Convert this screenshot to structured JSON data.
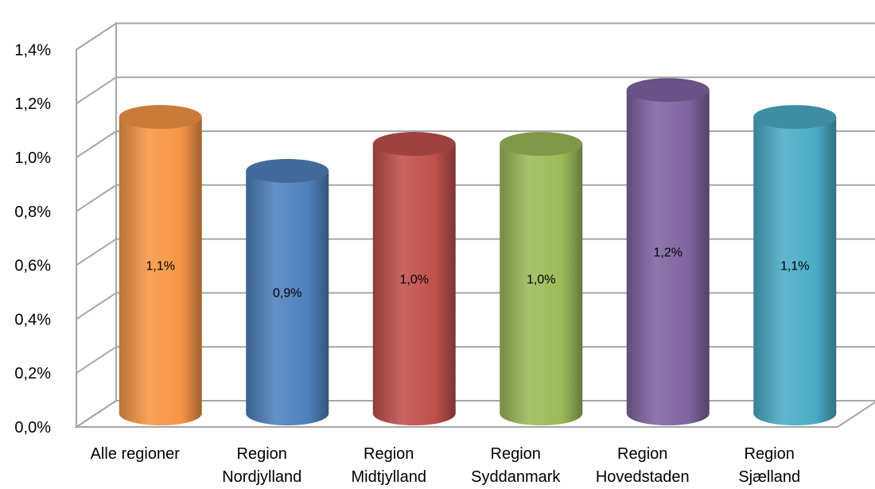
{
  "chart_data": {
    "type": "bar",
    "style": "3d-cylinder",
    "categories": [
      [
        "Alle regioner"
      ],
      [
        "Region",
        "Nordjylland"
      ],
      [
        "Region",
        "Midtjylland"
      ],
      [
        "Region",
        "Syddanmark"
      ],
      [
        "Region",
        "Hovedstaden"
      ],
      [
        "Region",
        "Sjælland"
      ]
    ],
    "values": [
      1.1,
      0.9,
      1.0,
      1.0,
      1.2,
      1.1
    ],
    "data_labels": [
      "1,1%",
      "0,9%",
      "1,0%",
      "1,0%",
      "1,2%",
      "1,1%"
    ],
    "colors": [
      "#F79646",
      "#4F81BD",
      "#C0504D",
      "#9BBB59",
      "#8064A2",
      "#4BACC6"
    ],
    "ylim": [
      0,
      1.5
    ],
    "yticks": [
      0.0,
      0.2,
      0.4,
      0.6,
      0.8,
      1.0,
      1.2,
      1.4
    ],
    "ytick_labels": [
      "0,0%",
      "0,2%",
      "0,4%",
      "0,6%",
      "0,8%",
      "1,0%",
      "1,2%",
      "1,4%"
    ],
    "grid": true,
    "legend": "none"
  }
}
